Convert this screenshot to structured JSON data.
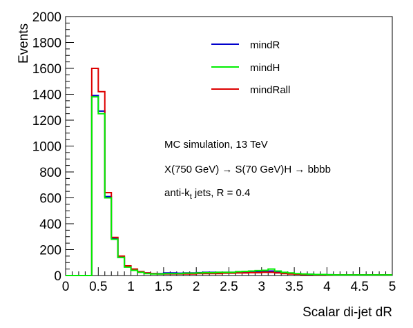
{
  "chart_data": {
    "type": "histogram",
    "title": "",
    "xlabel": "Scalar di-jet dR",
    "ylabel": "Events",
    "xlim": [
      0,
      5
    ],
    "ylim": [
      0,
      2000
    ],
    "bin_width": 0.1,
    "x_ticks": [
      "0",
      "0.5",
      "1",
      "1.5",
      "2",
      "2.5",
      "3",
      "3.5",
      "4",
      "4.5",
      "5"
    ],
    "y_ticks": [
      "0",
      "200",
      "400",
      "600",
      "800",
      "1000",
      "1200",
      "1400",
      "1600",
      "1800",
      "2000"
    ],
    "grid": false,
    "legend_position": "top-right",
    "series": [
      {
        "name": "mindR",
        "color": "#0000cc",
        "values": [
          0,
          0,
          0,
          0,
          1390,
          1270,
          610,
          290,
          140,
          70,
          45,
          30,
          20,
          15,
          15,
          20,
          20,
          18,
          20,
          20,
          22,
          25,
          25,
          25,
          25,
          25,
          28,
          28,
          30,
          30,
          35,
          35,
          25,
          20,
          15,
          12,
          10,
          10,
          8,
          8,
          6,
          5,
          5,
          5,
          5,
          5,
          5,
          5,
          5,
          5
        ]
      },
      {
        "name": "mindH",
        "color": "#00ee00",
        "values": [
          0,
          0,
          0,
          0,
          1380,
          1250,
          600,
          280,
          140,
          65,
          40,
          25,
          15,
          12,
          12,
          15,
          15,
          15,
          18,
          18,
          20,
          22,
          22,
          25,
          25,
          25,
          30,
          32,
          35,
          38,
          40,
          50,
          35,
          25,
          20,
          15,
          12,
          10,
          8,
          8,
          6,
          5,
          5,
          5,
          5,
          5,
          5,
          5,
          5,
          5
        ]
      },
      {
        "name": "mindRall",
        "color": "#dd0000",
        "values": [
          0,
          0,
          0,
          0,
          1600,
          1420,
          640,
          295,
          150,
          75,
          50,
          30,
          20,
          15,
          12,
          12,
          12,
          12,
          12,
          12,
          15,
          15,
          15,
          15,
          18,
          18,
          20,
          20,
          22,
          22,
          25,
          25,
          20,
          15,
          12,
          10,
          8,
          8,
          6,
          6,
          5,
          5,
          5,
          5,
          5,
          5,
          5,
          5,
          5,
          5
        ]
      }
    ],
    "annotations": [
      "MC simulation, 13 TeV",
      "X(750 GeV) → S(70 GeV)H → bbbb",
      "anti-k",
      "t",
      " jets, R = 0.4"
    ]
  }
}
